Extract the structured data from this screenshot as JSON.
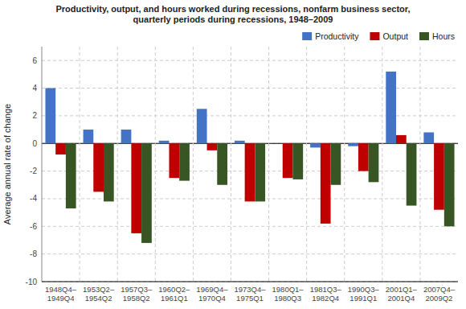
{
  "chart_data": {
    "type": "bar",
    "title": "Productivity, output, and hours worked during recessions, nonfarm business sector,\nquarterly periods during recessions, 1948–2009",
    "y_label": "Average annual rate of change",
    "categories": [
      "1948Q4–\n1949Q4",
      "1953Q2–\n1954Q2",
      "1957Q3–\n1958Q2",
      "1960Q2–\n1961Q1",
      "1969Q4–\n1970Q4",
      "1973Q4–\n1975Q1",
      "1980Q1–\n1980Q3",
      "1981Q3–\n1982Q4",
      "1990Q3–\n1991Q1",
      "2001Q1–\n2001Q4",
      "2007Q4–\n2009Q2"
    ],
    "series": [
      {
        "name": "Productivity",
        "color": "#4472C4",
        "values": [
          4.0,
          1.0,
          1.0,
          0.2,
          2.5,
          0.2,
          0.0,
          -0.3,
          -0.2,
          5.2,
          0.8
        ]
      },
      {
        "name": "Output",
        "color": "#BE0000",
        "values": [
          -0.8,
          -3.5,
          -6.5,
          -2.5,
          -0.5,
          -4.2,
          -2.5,
          -5.8,
          -2.0,
          0.6,
          -4.8
        ]
      },
      {
        "name": "Hours",
        "color": "#375623",
        "values": [
          -4.7,
          -4.2,
          -7.2,
          -2.7,
          -3.0,
          -4.2,
          -2.6,
          -3.0,
          -2.8,
          -4.5,
          -6.0
        ]
      }
    ],
    "ylim": [
      -10,
      7
    ],
    "yticks": [
      -10,
      -8,
      -6,
      -4,
      -2,
      0,
      2,
      4,
      6
    ],
    "grid": true,
    "legend": "upper right"
  }
}
